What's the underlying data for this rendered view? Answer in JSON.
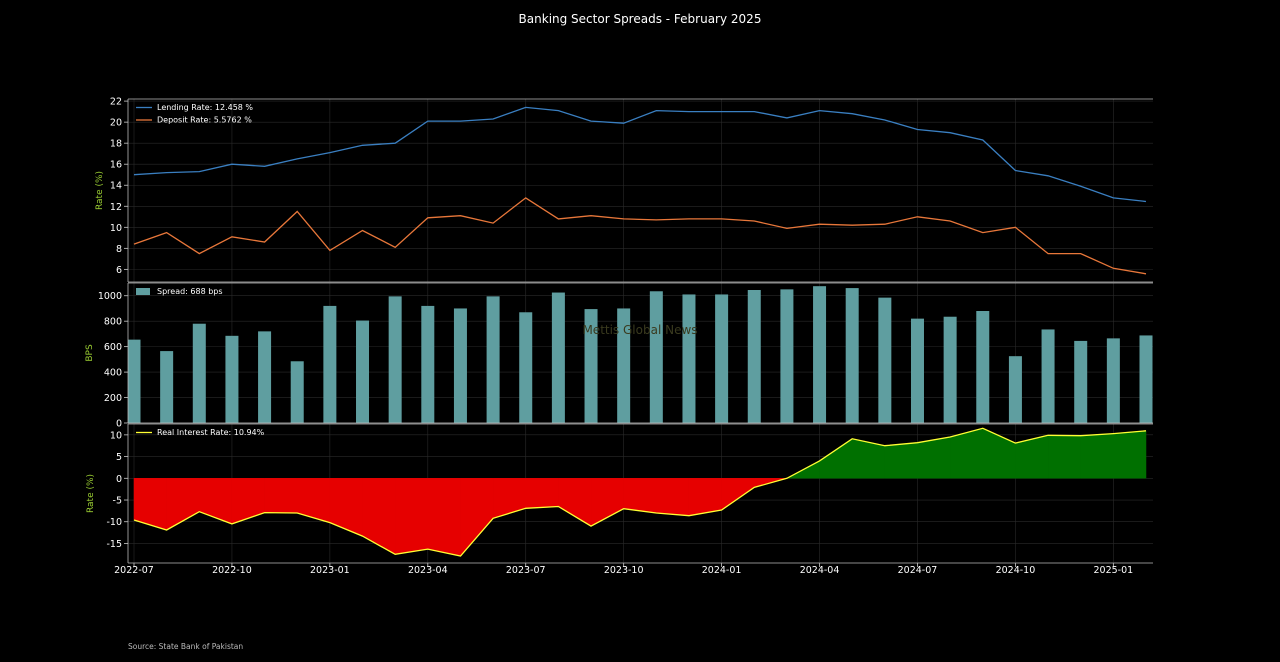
{
  "title": "Banking Sector Spreads - February 2025",
  "source": "Source: State Bank of Pakistan",
  "watermark": "Mettis Global News",
  "colors": {
    "background": "#000000",
    "lending": "#3a7fc1",
    "deposit": "#e8773a",
    "spread_bar": "#5f9ea0",
    "real_line": "#ffff33",
    "neg_fill": "#e60000",
    "pos_fill": "#007000",
    "axis_label": "#9acd32"
  },
  "chart_data": [
    {
      "type": "line",
      "ylabel": "Rate (%)",
      "ylim": [
        4.8,
        22.2
      ],
      "yticks": [
        6,
        8,
        10,
        12,
        14,
        16,
        18,
        20,
        22
      ],
      "grid": true,
      "legend": "top-left",
      "series": [
        {
          "name": "Lending Rate: 12.458 %",
          "values": [
            15.0,
            15.2,
            15.3,
            16.0,
            15.8,
            16.5,
            17.1,
            17.8,
            18.0,
            20.1,
            20.1,
            20.3,
            21.4,
            21.1,
            20.1,
            19.9,
            21.1,
            21.0,
            21.0,
            21.0,
            20.4,
            21.1,
            20.8,
            20.2,
            19.3,
            19.0,
            18.3,
            15.4,
            14.9,
            13.9,
            12.8,
            12.458
          ]
        },
        {
          "name": "Deposit Rate: 5.5762 %",
          "values": [
            8.4,
            9.5,
            7.5,
            9.1,
            8.6,
            11.5,
            7.8,
            9.7,
            8.1,
            10.9,
            11.1,
            10.4,
            12.8,
            10.8,
            11.1,
            10.8,
            10.7,
            10.8,
            10.8,
            10.6,
            9.9,
            10.3,
            10.2,
            10.3,
            11.0,
            10.6,
            9.5,
            10.0,
            7.5,
            7.5,
            6.1,
            5.5762
          ]
        }
      ]
    },
    {
      "type": "bar",
      "ylabel": "BPS",
      "ylim": [
        0,
        1100
      ],
      "yticks": [
        0,
        200,
        400,
        600,
        800,
        1000
      ],
      "grid": true,
      "legend": "top-left",
      "series": [
        {
          "name": "Spread: 688 bps",
          "values": [
            655,
            565,
            780,
            685,
            720,
            485,
            920,
            805,
            995,
            920,
            900,
            995,
            870,
            1025,
            895,
            900,
            1035,
            1010,
            1010,
            1045,
            1050,
            1075,
            1060,
            985,
            820,
            835,
            880,
            525,
            735,
            645,
            665,
            688
          ]
        }
      ]
    },
    {
      "type": "area",
      "ylabel": "Rate (%)",
      "ylim": [
        -19.5,
        12.5
      ],
      "yticks": [
        -15,
        -10,
        -5,
        0,
        5,
        10
      ],
      "grid": true,
      "legend": "top-left",
      "series": [
        {
          "name": "Real Interest Rate: 10.94%",
          "values": [
            -9.6,
            -11.9,
            -7.7,
            -10.5,
            -7.9,
            -8.0,
            -10.2,
            -13.3,
            -17.5,
            -16.3,
            -17.9,
            -9.2,
            -6.9,
            -6.5,
            -11.0,
            -7.0,
            -8.0,
            -8.6,
            -7.3,
            -2.1,
            0.0,
            4.0,
            9.1,
            7.5,
            8.2,
            9.5,
            11.5,
            8.1,
            9.9,
            9.8,
            10.3,
            10.94
          ]
        }
      ],
      "xticks": [
        "2022-07",
        "2022-10",
        "2023-01",
        "2023-04",
        "2023-07",
        "2023-10",
        "2024-01",
        "2024-04",
        "2024-07",
        "2024-10",
        "2025-01"
      ]
    }
  ]
}
